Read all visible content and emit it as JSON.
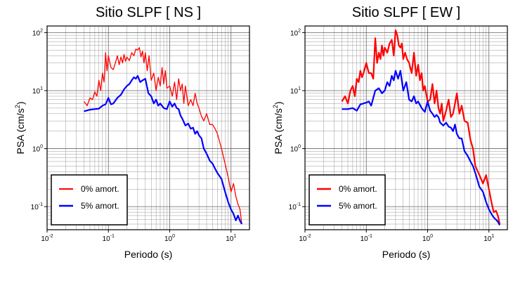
{
  "chart_data": [
    {
      "type": "line",
      "title": "Sitio SLPF [ NS ]",
      "xlabel": "Periodo (s)",
      "ylabel": "PSA (cm/s²)",
      "ylabel_base": "PSA (cm/s",
      "ylabel_sup": "2",
      "ylabel_end": ")",
      "xscale": "log",
      "yscale": "log",
      "xlim": [
        0.01,
        20
      ],
      "ylim": [
        0.04,
        130
      ],
      "grid": true,
      "legend_position": "bottom-left",
      "x_ticks": [
        {
          "base": "10",
          "exp": "-2",
          "value": 0.01
        },
        {
          "base": "10",
          "exp": "-1",
          "value": 0.1
        },
        {
          "base": "10",
          "exp": "0",
          "value": 1
        },
        {
          "base": "10",
          "exp": "1",
          "value": 10
        }
      ],
      "y_ticks": [
        {
          "base": "10",
          "exp": "-1",
          "value": 0.1
        },
        {
          "base": "10",
          "exp": "0",
          "value": 1
        },
        {
          "base": "10",
          "exp": "1",
          "value": 10
        },
        {
          "base": "10",
          "exp": "2",
          "value": 100
        }
      ],
      "series": [
        {
          "name": "0% amort.",
          "color": "#ff0000",
          "x": [
            0.04,
            0.045,
            0.05,
            0.055,
            0.06,
            0.065,
            0.07,
            0.075,
            0.08,
            0.085,
            0.09,
            0.095,
            0.1,
            0.11,
            0.12,
            0.13,
            0.14,
            0.15,
            0.16,
            0.17,
            0.18,
            0.19,
            0.2,
            0.22,
            0.24,
            0.26,
            0.28,
            0.3,
            0.32,
            0.34,
            0.36,
            0.38,
            0.4,
            0.43,
            0.46,
            0.5,
            0.55,
            0.6,
            0.65,
            0.7,
            0.75,
            0.8,
            0.85,
            0.9,
            1.0,
            1.1,
            1.2,
            1.3,
            1.4,
            1.5,
            1.6,
            1.7,
            1.8,
            2.0,
            2.2,
            2.4,
            2.6,
            2.8,
            3.0,
            3.3,
            3.6,
            4.0,
            4.5,
            5.0,
            5.5,
            6.0,
            7.0,
            8.0,
            9.0,
            10.0,
            11.0,
            12.0,
            13.0,
            14.0,
            15.0
          ],
          "y": [
            6.5,
            5.5,
            7.5,
            7,
            9.5,
            8,
            15,
            10,
            20,
            14,
            45,
            22,
            40,
            25,
            23,
            30,
            40,
            28,
            38,
            30,
            42,
            32,
            38,
            33,
            45,
            40,
            52,
            50,
            55,
            38,
            48,
            30,
            45,
            22,
            40,
            15,
            20,
            10,
            17,
            12,
            25,
            13,
            22,
            11,
            12,
            8,
            14,
            7,
            16,
            10,
            13,
            6,
            12,
            5.5,
            7,
            5.5,
            9,
            6,
            5,
            3.6,
            3,
            4,
            2.6,
            2.6,
            2.2,
            1.8,
            1,
            0.55,
            0.32,
            0.18,
            0.25,
            0.15,
            0.11,
            0.09,
            0.05
          ]
        },
        {
          "name": "5% amort.",
          "color": "#0000ff",
          "x": [
            0.04,
            0.05,
            0.06,
            0.07,
            0.08,
            0.09,
            0.1,
            0.11,
            0.12,
            0.14,
            0.16,
            0.18,
            0.2,
            0.22,
            0.24,
            0.26,
            0.28,
            0.3,
            0.33,
            0.36,
            0.4,
            0.45,
            0.5,
            0.55,
            0.6,
            0.65,
            0.7,
            0.8,
            0.9,
            1.0,
            1.1,
            1.2,
            1.3,
            1.4,
            1.5,
            1.6,
            1.8,
            2.0,
            2.2,
            2.4,
            2.6,
            2.8,
            3.0,
            3.3,
            3.6,
            4.0,
            4.5,
            5.0,
            5.5,
            6.0,
            7.0,
            8.0,
            9.0,
            10.0,
            11.0,
            12.0,
            13.0,
            14.0,
            15.0
          ],
          "y": [
            4.4,
            4.7,
            4.8,
            4.9,
            5.5,
            5.8,
            7.5,
            5.8,
            6,
            7.5,
            8.5,
            10.5,
            12,
            13,
            15,
            17,
            16,
            18,
            14,
            15,
            16,
            9,
            8,
            6,
            7,
            5.5,
            6,
            5,
            4.8,
            6.5,
            5.3,
            6,
            5,
            4.8,
            3.7,
            3.3,
            2.5,
            2.7,
            2.2,
            2.3,
            1.8,
            2.0,
            1.7,
            1.5,
            1.0,
            0.82,
            0.62,
            0.55,
            0.45,
            0.38,
            0.3,
            0.18,
            0.12,
            0.09,
            0.075,
            0.058,
            0.07,
            0.057,
            0.05
          ]
        }
      ]
    },
    {
      "type": "line",
      "title": "Sitio SLPF [ EW ]",
      "xlabel": "Periodo (s)",
      "ylabel": "PSA (cm/s²)",
      "ylabel_base": "PSA (cm/s",
      "ylabel_sup": "2",
      "ylabel_end": ")",
      "xscale": "log",
      "yscale": "log",
      "xlim": [
        0.01,
        20
      ],
      "ylim": [
        0.04,
        130
      ],
      "grid": true,
      "legend_position": "bottom-left",
      "x_ticks": [
        {
          "base": "10",
          "exp": "-2",
          "value": 0.01
        },
        {
          "base": "10",
          "exp": "-1",
          "value": 0.1
        },
        {
          "base": "10",
          "exp": "0",
          "value": 1
        },
        {
          "base": "10",
          "exp": "1",
          "value": 10
        }
      ],
      "y_ticks": [
        {
          "base": "10",
          "exp": "-1",
          "value": 0.1
        },
        {
          "base": "10",
          "exp": "0",
          "value": 1
        },
        {
          "base": "10",
          "exp": "1",
          "value": 10
        },
        {
          "base": "10",
          "exp": "2",
          "value": 100
        }
      ],
      "series": [
        {
          "name": "0% amort.",
          "color": "#ff0000",
          "x": [
            0.04,
            0.045,
            0.05,
            0.055,
            0.06,
            0.065,
            0.07,
            0.075,
            0.08,
            0.085,
            0.09,
            0.1,
            0.11,
            0.12,
            0.13,
            0.14,
            0.15,
            0.16,
            0.17,
            0.18,
            0.19,
            0.2,
            0.22,
            0.24,
            0.26,
            0.28,
            0.3,
            0.32,
            0.34,
            0.36,
            0.38,
            0.4,
            0.43,
            0.46,
            0.5,
            0.55,
            0.6,
            0.65,
            0.7,
            0.75,
            0.8,
            0.85,
            0.9,
            1.0,
            1.1,
            1.2,
            1.3,
            1.4,
            1.5,
            1.6,
            1.7,
            1.8,
            2.0,
            2.2,
            2.4,
            2.6,
            2.8,
            3.0,
            3.3,
            3.6,
            4.0,
            4.5,
            5.0,
            5.5,
            6.0,
            7.0,
            8.0,
            9.0,
            10.0,
            11.0,
            12.0,
            13.0,
            14.0,
            15.0
          ],
          "y": [
            6.5,
            8,
            6,
            10,
            12,
            8,
            16,
            14,
            22,
            17,
            20,
            30,
            20,
            20,
            16,
            80,
            30,
            45,
            35,
            60,
            40,
            55,
            45,
            65,
            75,
            40,
            110,
            90,
            60,
            55,
            65,
            35,
            45,
            35,
            30,
            20,
            45,
            18,
            28,
            15,
            20,
            10,
            12,
            6.5,
            7,
            13,
            6,
            10,
            5,
            4,
            6,
            3,
            4.5,
            7,
            3.5,
            4,
            6,
            9,
            4,
            5.5,
            3,
            2.8,
            1.4,
            1.0,
            0.5,
            0.35,
            0.25,
            0.35,
            0.2,
            0.12,
            0.08,
            0.085,
            0.07,
            0.05
          ]
        },
        {
          "name": "5% amort.",
          "color": "#0000ff",
          "x": [
            0.04,
            0.05,
            0.06,
            0.07,
            0.08,
            0.09,
            0.1,
            0.11,
            0.12,
            0.14,
            0.16,
            0.18,
            0.2,
            0.22,
            0.24,
            0.26,
            0.28,
            0.3,
            0.33,
            0.36,
            0.4,
            0.45,
            0.5,
            0.55,
            0.6,
            0.65,
            0.7,
            0.8,
            0.9,
            1.0,
            1.1,
            1.2,
            1.3,
            1.4,
            1.5,
            1.6,
            1.8,
            2.0,
            2.2,
            2.4,
            2.6,
            2.8,
            3.0,
            3.3,
            3.6,
            4.0,
            4.5,
            5.0,
            5.5,
            6.0,
            7.0,
            8.0,
            9.0,
            10.0,
            11.0,
            12.0,
            13.0,
            14.0,
            15.0
          ],
          "y": [
            4.8,
            4.8,
            5.0,
            4.5,
            5.8,
            6,
            6.2,
            6.5,
            5.5,
            10,
            11,
            9,
            10,
            14,
            12,
            18,
            15,
            22,
            16,
            22,
            10,
            14,
            7,
            6.5,
            8,
            6,
            6.5,
            5,
            4.3,
            6.5,
            4.5,
            4.0,
            3.5,
            3.8,
            3.5,
            2.8,
            2.5,
            2.8,
            2.4,
            2.3,
            2.0,
            2.6,
            1.8,
            1.5,
            1.5,
            0.9,
            0.75,
            0.6,
            0.5,
            0.38,
            0.22,
            0.18,
            0.12,
            0.09,
            0.075,
            0.065,
            0.06,
            0.055,
            0.048
          ]
        }
      ]
    }
  ]
}
